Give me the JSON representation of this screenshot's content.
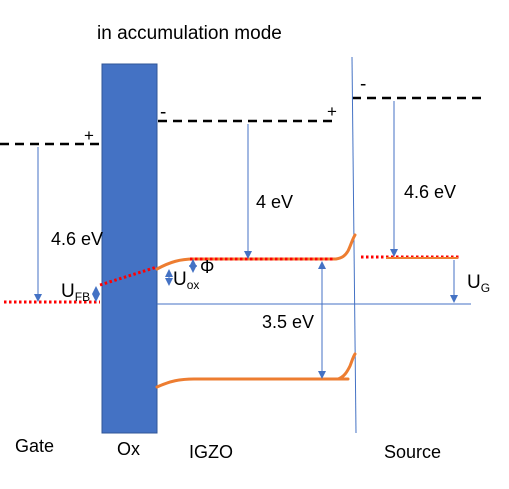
{
  "title": "in accumulation mode",
  "regions": {
    "gate": "Gate",
    "oxide": "Ox",
    "semiconductor": "IGZO",
    "source": "Source"
  },
  "charges": {
    "gate": "+",
    "oxide_right": "-",
    "igzo_right": "+",
    "source": "-"
  },
  "energies": {
    "gate_work_function": "4.6 eV",
    "igzo_electron_affinity": "4 eV",
    "source_work_function": "4.6 eV",
    "igzo_band_gap": "3.5 eV"
  },
  "voltages": {
    "flat_band": {
      "symbol": "U",
      "subscript": "FB"
    },
    "oxide": {
      "symbol": "U",
      "subscript": "ox"
    },
    "surface_potential": "Φ",
    "gate": {
      "symbol": "U",
      "subscript": "G"
    }
  },
  "colors": {
    "oxide": "#4472C4",
    "oxide_border": "#2F5597",
    "band_edge": "#ED7D31",
    "fermi_level": "#FF0000",
    "arrow": "#4472C4",
    "vacuum_level": "#000000"
  }
}
